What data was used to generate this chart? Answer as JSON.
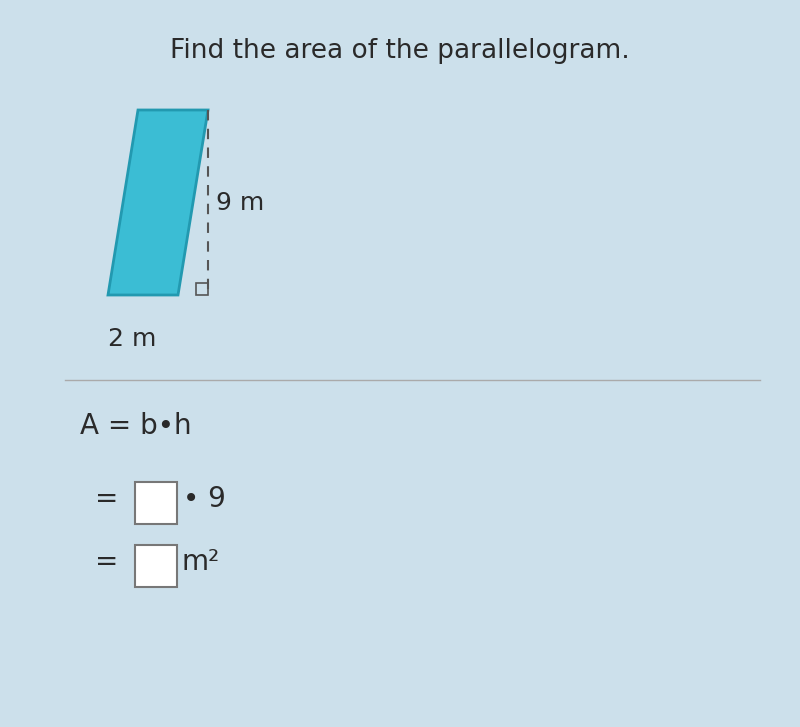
{
  "title": "Find the area of the parallelogram.",
  "title_fontsize": 19,
  "bg_color": "#cce0eb",
  "parallelogram_fill": "#3bbdd4",
  "parallelogram_edge": "#2299b0",
  "label_9m": "9 m",
  "label_2m": "2 m",
  "text_color": "#2a2a2a",
  "divider_color": "#aaaaaa",
  "sq_color": "#555555",
  "dash_color": "#555555"
}
